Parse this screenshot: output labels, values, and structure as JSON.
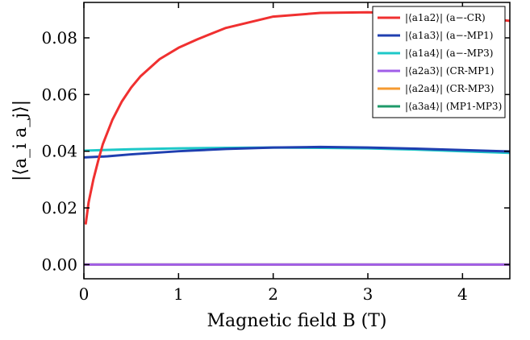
{
  "chart_data": {
    "type": "line",
    "title": "",
    "xlabel": "Magnetic field B (T)",
    "ylabel": "|⟨a_i a_j⟩|",
    "xlim": [
      0,
      4.5
    ],
    "ylim": [
      -0.005,
      0.0925
    ],
    "xticks": [
      "0",
      "1",
      "2",
      "3",
      "4"
    ],
    "yticks": [
      "0.00",
      "0.02",
      "0.04",
      "0.06",
      "0.08"
    ],
    "grid": false,
    "legend_position": "top-right",
    "series": [
      {
        "name": "|⟨a1a2⟩| (a−-CR)",
        "color": "#f03030",
        "x": [
          0.02,
          0.05,
          0.1,
          0.15,
          0.2,
          0.3,
          0.4,
          0.5,
          0.6,
          0.8,
          1.0,
          1.2,
          1.5,
          2.0,
          2.5,
          3.0,
          3.5,
          4.0,
          4.5
        ],
        "y": [
          0.0145,
          0.022,
          0.03,
          0.0365,
          0.0425,
          0.051,
          0.0575,
          0.0625,
          0.0665,
          0.0725,
          0.0765,
          0.0795,
          0.0835,
          0.0875,
          0.0888,
          0.089,
          0.0885,
          0.0875,
          0.086
        ]
      },
      {
        "name": "|⟨a1a3⟩| (a−-MP1)",
        "color": "#1f3fb0",
        "x": [
          0.0,
          0.25,
          0.5,
          1.0,
          1.5,
          2.0,
          2.5,
          3.0,
          3.5,
          4.0,
          4.5
        ],
        "y": [
          0.0378,
          0.0382,
          0.0389,
          0.04,
          0.0408,
          0.0413,
          0.0415,
          0.0413,
          0.0409,
          0.0404,
          0.0399
        ]
      },
      {
        "name": "|⟨a1a4⟩| (a−-MP3)",
        "color": "#1ec8c8",
        "x": [
          0.0,
          0.5,
          1.0,
          1.5,
          2.0,
          2.5,
          3.0,
          3.5,
          4.0,
          4.5
        ],
        "y": [
          0.0402,
          0.0407,
          0.041,
          0.0412,
          0.0413,
          0.0412,
          0.041,
          0.0406,
          0.04,
          0.0394
        ]
      },
      {
        "name": "|⟨a2a3⟩| (CR-MP1)",
        "color": "#a05ee8",
        "x": [
          0.0,
          4.5
        ],
        "y": [
          0.0,
          0.0
        ]
      },
      {
        "name": "|⟨a2a4⟩| (CR-MP3)",
        "color": "#f59a30",
        "x": [
          0.0,
          4.5
        ],
        "y": [
          0.0,
          0.0
        ]
      },
      {
        "name": "|⟨a3a4⟩| (MP1-MP3)",
        "color": "#1e9a6a",
        "x": [
          0.0,
          4.5
        ],
        "y": [
          0.0,
          0.0
        ]
      }
    ]
  }
}
